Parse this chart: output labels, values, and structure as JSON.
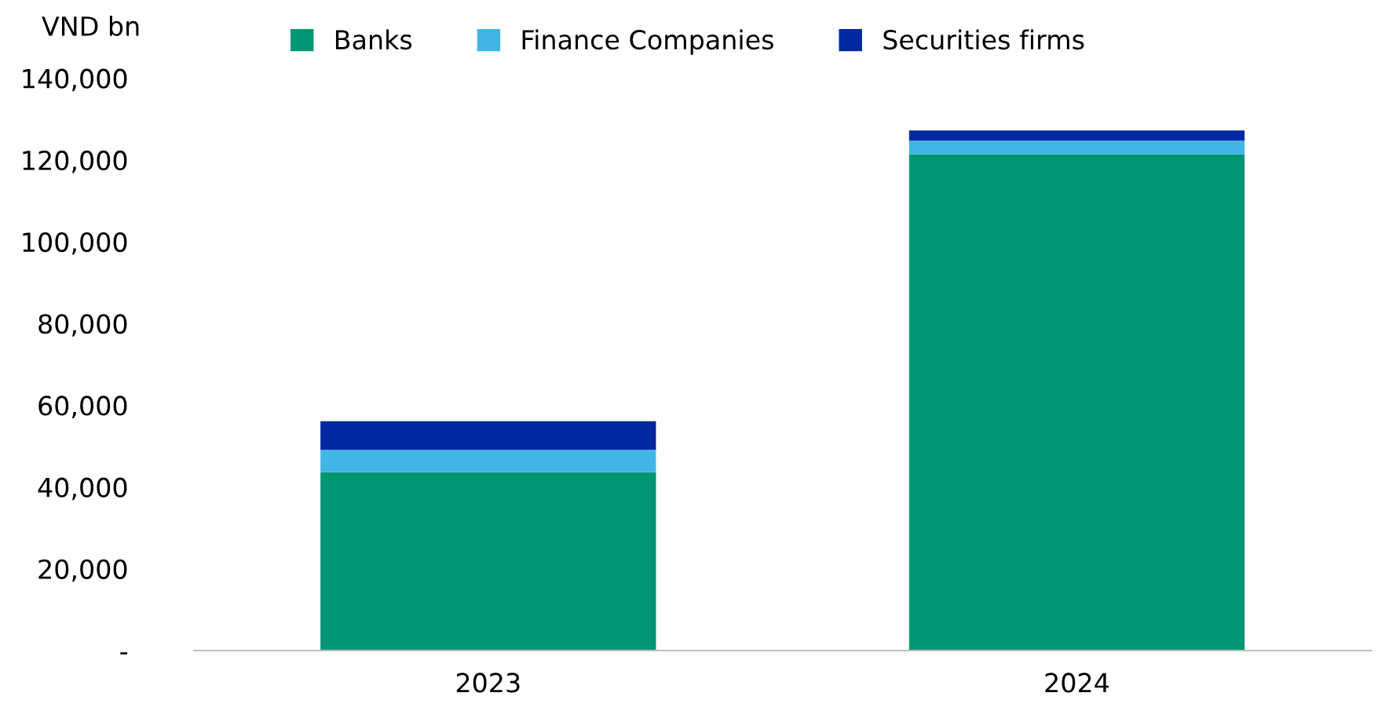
{
  "chart_data": {
    "type": "bar",
    "stacked": true,
    "ylabel": "VND bn",
    "categories": [
      "2023",
      "2024"
    ],
    "series": [
      {
        "name": "Banks",
        "color": "#009673",
        "values": [
          43600,
          121400
        ]
      },
      {
        "name": "Finance Companies",
        "color": "#41b6e6",
        "values": [
          5500,
          3300
        ]
      },
      {
        "name": "Securities firms",
        "color": "#0028a0",
        "values": [
          7000,
          2500
        ]
      }
    ],
    "ylim": [
      0,
      140000
    ],
    "yticks": [
      {
        "value": 0,
        "label": "-"
      },
      {
        "value": 20000,
        "label": "20,000"
      },
      {
        "value": 40000,
        "label": "40,000"
      },
      {
        "value": 60000,
        "label": "60,000"
      },
      {
        "value": 80000,
        "label": "80,000"
      },
      {
        "value": 100000,
        "label": "100,000"
      },
      {
        "value": 120000,
        "label": "120,000"
      },
      {
        "value": 140000,
        "label": "140,000"
      }
    ],
    "grid": false,
    "legend": "top"
  }
}
